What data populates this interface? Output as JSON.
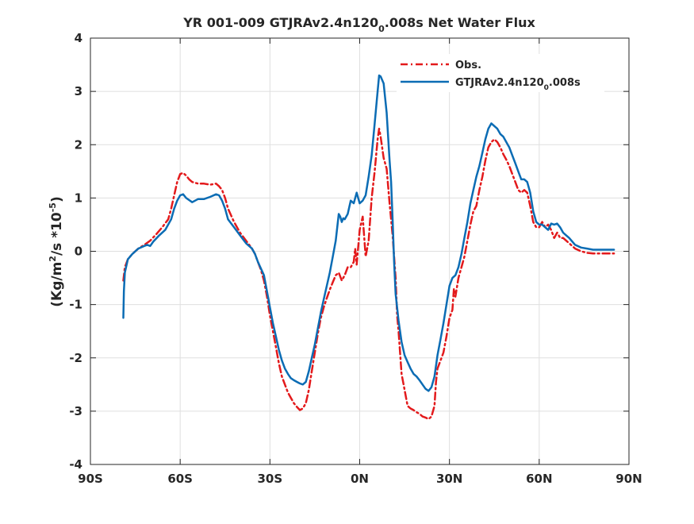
{
  "chart_data": {
    "type": "line",
    "title": {
      "prefix": "YR 001-009 GTJRAv2.4n120",
      "sub": "0",
      "suffix": ".008s  Net Water Flux"
    },
    "ylabel": {
      "a": "(Kg/m",
      "sup1": "2",
      "b": "/s *10",
      "sup2": "-5",
      "c": ")"
    },
    "xlim": [
      -90,
      90
    ],
    "ylim": [
      -4,
      4
    ],
    "grid": true,
    "legend_position": "top-right",
    "x_ticks": [
      {
        "value": -90,
        "label": "90S"
      },
      {
        "value": -60,
        "label": "60S"
      },
      {
        "value": -30,
        "label": "30S"
      },
      {
        "value": 0,
        "label": "0N"
      },
      {
        "value": 30,
        "label": "30N"
      },
      {
        "value": 60,
        "label": "60N"
      },
      {
        "value": 90,
        "label": "90N"
      }
    ],
    "y_ticks": [
      {
        "value": -4,
        "label": "-4"
      },
      {
        "value": -3,
        "label": "-3"
      },
      {
        "value": -2,
        "label": "-2"
      },
      {
        "value": -1,
        "label": "-1"
      },
      {
        "value": 0,
        "label": "0"
      },
      {
        "value": 1,
        "label": "1"
      },
      {
        "value": 2,
        "label": "2"
      },
      {
        "value": 3,
        "label": "3"
      },
      {
        "value": 4,
        "label": "4"
      }
    ],
    "series": [
      {
        "name": "Obs.",
        "color": "#e31a1c",
        "style": "dash-dot",
        "points": [
          [
            -79,
            -0.55
          ],
          [
            -78.5,
            -0.3
          ],
          [
            -77.5,
            -0.15
          ],
          [
            -76,
            -0.05
          ],
          [
            -74,
            0.05
          ],
          [
            -72,
            0.12
          ],
          [
            -70,
            0.2
          ],
          [
            -68,
            0.32
          ],
          [
            -66,
            0.45
          ],
          [
            -64,
            0.6
          ],
          [
            -63,
            0.8
          ],
          [
            -62,
            1.05
          ],
          [
            -61,
            1.3
          ],
          [
            -60,
            1.45
          ],
          [
            -59,
            1.47
          ],
          [
            -58,
            1.42
          ],
          [
            -57,
            1.35
          ],
          [
            -56,
            1.3
          ],
          [
            -54,
            1.27
          ],
          [
            -52,
            1.27
          ],
          [
            -50,
            1.25
          ],
          [
            -48,
            1.27
          ],
          [
            -47,
            1.22
          ],
          [
            -46,
            1.15
          ],
          [
            -45,
            1.0
          ],
          [
            -44,
            0.8
          ],
          [
            -42,
            0.55
          ],
          [
            -40,
            0.35
          ],
          [
            -38,
            0.2
          ],
          [
            -36,
            0.05
          ],
          [
            -35,
            -0.05
          ],
          [
            -34,
            -0.2
          ],
          [
            -33,
            -0.35
          ],
          [
            -32,
            -0.55
          ],
          [
            -31,
            -0.85
          ],
          [
            -30,
            -1.2
          ],
          [
            -29,
            -1.5
          ],
          [
            -28,
            -1.8
          ],
          [
            -27,
            -2.1
          ],
          [
            -26,
            -2.35
          ],
          [
            -25,
            -2.5
          ],
          [
            -24,
            -2.65
          ],
          [
            -23,
            -2.75
          ],
          [
            -22,
            -2.85
          ],
          [
            -21,
            -2.92
          ],
          [
            -20,
            -2.98
          ],
          [
            -19,
            -2.95
          ],
          [
            -18,
            -2.85
          ],
          [
            -17,
            -2.6
          ],
          [
            -16,
            -2.25
          ],
          [
            -15,
            -1.9
          ],
          [
            -14,
            -1.55
          ],
          [
            -13,
            -1.25
          ],
          [
            -12,
            -1.05
          ],
          [
            -11,
            -0.88
          ],
          [
            -10,
            -0.72
          ],
          [
            -9,
            -0.58
          ],
          [
            -8,
            -0.45
          ],
          [
            -7,
            -0.4
          ],
          [
            -6,
            -0.55
          ],
          [
            -5,
            -0.45
          ],
          [
            -4,
            -0.3
          ],
          [
            -3,
            -0.3
          ],
          [
            -2,
            -0.2
          ],
          [
            -1.5,
            0.05
          ],
          [
            -1,
            -0.25
          ],
          [
            0,
            0.4
          ],
          [
            1,
            0.65
          ],
          [
            2,
            -0.1
          ],
          [
            3,
            0.2
          ],
          [
            4,
            1.0
          ],
          [
            5,
            1.5
          ],
          [
            6,
            2.1
          ],
          [
            6.5,
            2.3
          ],
          [
            7,
            2.15
          ],
          [
            8,
            1.75
          ],
          [
            9,
            1.55
          ],
          [
            10,
            0.9
          ],
          [
            11,
            0.3
          ],
          [
            12,
            -0.5
          ],
          [
            12.5,
            -1.2
          ],
          [
            13,
            -1.5
          ],
          [
            13.5,
            -1.9
          ],
          [
            14,
            -2.3
          ],
          [
            15,
            -2.6
          ],
          [
            15.5,
            -2.75
          ],
          [
            16,
            -2.9
          ],
          [
            17,
            -2.95
          ],
          [
            18,
            -2.98
          ],
          [
            19,
            -3.02
          ],
          [
            20,
            -3.05
          ],
          [
            21,
            -3.1
          ],
          [
            22,
            -3.12
          ],
          [
            23,
            -3.15
          ],
          [
            24,
            -3.1
          ],
          [
            25,
            -2.9
          ],
          [
            25.5,
            -2.45
          ],
          [
            26,
            -2.2
          ],
          [
            27,
            -2.05
          ],
          [
            28,
            -1.9
          ],
          [
            29,
            -1.6
          ],
          [
            30,
            -1.25
          ],
          [
            31,
            -1.1
          ],
          [
            31.5,
            -0.7
          ],
          [
            32,
            -0.85
          ],
          [
            33,
            -0.5
          ],
          [
            34,
            -0.3
          ],
          [
            35,
            -0.1
          ],
          [
            36,
            0.2
          ],
          [
            37,
            0.5
          ],
          [
            38,
            0.75
          ],
          [
            39,
            0.85
          ],
          [
            40,
            1.15
          ],
          [
            41,
            1.4
          ],
          [
            42,
            1.7
          ],
          [
            43,
            1.95
          ],
          [
            44,
            2.05
          ],
          [
            45,
            2.1
          ],
          [
            46,
            2.05
          ],
          [
            47,
            1.95
          ],
          [
            48,
            1.82
          ],
          [
            49,
            1.72
          ],
          [
            50,
            1.6
          ],
          [
            51,
            1.45
          ],
          [
            52,
            1.3
          ],
          [
            53,
            1.15
          ],
          [
            54,
            1.1
          ],
          [
            55,
            1.15
          ],
          [
            56,
            1.1
          ],
          [
            57,
            0.85
          ],
          [
            58,
            0.55
          ],
          [
            59,
            0.45
          ],
          [
            60,
            0.45
          ],
          [
            61,
            0.55
          ],
          [
            62,
            0.45
          ],
          [
            63,
            0.5
          ],
          [
            64,
            0.4
          ],
          [
            65,
            0.25
          ],
          [
            66,
            0.35
          ],
          [
            67,
            0.25
          ],
          [
            68,
            0.25
          ],
          [
            70,
            0.15
          ],
          [
            72,
            0.05
          ],
          [
            74,
            0.0
          ],
          [
            76,
            -0.03
          ],
          [
            78,
            -0.04
          ],
          [
            80,
            -0.04
          ],
          [
            82,
            -0.04
          ],
          [
            84,
            -0.04
          ],
          [
            85,
            -0.04
          ]
        ]
      },
      {
        "name": "GTJRAv2.4n120₀.008s",
        "label_main": "GTJRAv2.4n120",
        "label_sub": "0",
        "label_suffix": ".008s",
        "color": "#0b6cb4",
        "style": "solid",
        "points": [
          [
            -79,
            -1.25
          ],
          [
            -78.8,
            -0.75
          ],
          [
            -78.5,
            -0.4
          ],
          [
            -77.5,
            -0.15
          ],
          [
            -76,
            -0.05
          ],
          [
            -74,
            0.05
          ],
          [
            -72,
            0.1
          ],
          [
            -71,
            0.12
          ],
          [
            -70,
            0.1
          ],
          [
            -69,
            0.18
          ],
          [
            -67,
            0.3
          ],
          [
            -65,
            0.4
          ],
          [
            -63,
            0.6
          ],
          [
            -62,
            0.8
          ],
          [
            -61,
            0.95
          ],
          [
            -60,
            1.05
          ],
          [
            -59,
            1.07
          ],
          [
            -58,
            1.0
          ],
          [
            -56,
            0.92
          ],
          [
            -55,
            0.95
          ],
          [
            -54,
            0.98
          ],
          [
            -52,
            0.98
          ],
          [
            -50,
            1.02
          ],
          [
            -48,
            1.07
          ],
          [
            -47,
            1.05
          ],
          [
            -46,
            0.95
          ],
          [
            -45,
            0.8
          ],
          [
            -44,
            0.6
          ],
          [
            -42,
            0.45
          ],
          [
            -40,
            0.3
          ],
          [
            -38,
            0.15
          ],
          [
            -36,
            0.05
          ],
          [
            -35,
            -0.05
          ],
          [
            -34,
            -0.2
          ],
          [
            -32,
            -0.45
          ],
          [
            -31,
            -0.75
          ],
          [
            -30,
            -1.05
          ],
          [
            -29,
            -1.35
          ],
          [
            -28,
            -1.6
          ],
          [
            -27,
            -1.85
          ],
          [
            -26,
            -2.05
          ],
          [
            -25,
            -2.2
          ],
          [
            -24,
            -2.3
          ],
          [
            -23,
            -2.38
          ],
          [
            -22,
            -2.42
          ],
          [
            -21,
            -2.45
          ],
          [
            -20,
            -2.48
          ],
          [
            -19,
            -2.5
          ],
          [
            -18,
            -2.45
          ],
          [
            -17,
            -2.25
          ],
          [
            -16,
            -2.0
          ],
          [
            -15,
            -1.75
          ],
          [
            -14,
            -1.45
          ],
          [
            -13,
            -1.15
          ],
          [
            -12,
            -0.9
          ],
          [
            -11,
            -0.65
          ],
          [
            -10,
            -0.4
          ],
          [
            -9,
            -0.1
          ],
          [
            -8,
            0.2
          ],
          [
            -7.5,
            0.45
          ],
          [
            -7,
            0.7
          ],
          [
            -6.5,
            0.65
          ],
          [
            -6,
            0.55
          ],
          [
            -5.5,
            0.62
          ],
          [
            -5,
            0.6
          ],
          [
            -4,
            0.7
          ],
          [
            -3,
            0.95
          ],
          [
            -2,
            0.9
          ],
          [
            -1,
            1.1
          ],
          [
            0,
            0.9
          ],
          [
            1,
            0.95
          ],
          [
            2,
            1.05
          ],
          [
            3,
            1.4
          ],
          [
            4,
            1.8
          ],
          [
            5,
            2.4
          ],
          [
            6,
            3.0
          ],
          [
            6.5,
            3.3
          ],
          [
            7,
            3.28
          ],
          [
            8,
            3.15
          ],
          [
            9,
            2.6
          ],
          [
            10,
            1.7
          ],
          [
            10.5,
            1.3
          ],
          [
            11,
            0.6
          ],
          [
            11.5,
            -0.2
          ],
          [
            12,
            -0.8
          ],
          [
            13,
            -1.3
          ],
          [
            14,
            -1.7
          ],
          [
            15,
            -1.95
          ],
          [
            16,
            -2.08
          ],
          [
            17,
            -2.2
          ],
          [
            18,
            -2.3
          ],
          [
            19,
            -2.35
          ],
          [
            20,
            -2.42
          ],
          [
            21,
            -2.5
          ],
          [
            22,
            -2.58
          ],
          [
            23,
            -2.62
          ],
          [
            24,
            -2.55
          ],
          [
            25,
            -2.35
          ],
          [
            26,
            -1.95
          ],
          [
            27,
            -1.65
          ],
          [
            28,
            -1.35
          ],
          [
            29,
            -1.0
          ],
          [
            30,
            -0.65
          ],
          [
            31,
            -0.5
          ],
          [
            32,
            -0.45
          ],
          [
            33,
            -0.3
          ],
          [
            34,
            -0.05
          ],
          [
            35,
            0.25
          ],
          [
            36,
            0.55
          ],
          [
            37,
            0.9
          ],
          [
            38,
            1.15
          ],
          [
            39,
            1.4
          ],
          [
            40,
            1.6
          ],
          [
            41,
            1.85
          ],
          [
            42,
            2.1
          ],
          [
            43,
            2.3
          ],
          [
            44,
            2.4
          ],
          [
            45,
            2.35
          ],
          [
            46,
            2.3
          ],
          [
            47,
            2.2
          ],
          [
            48,
            2.15
          ],
          [
            49,
            2.05
          ],
          [
            50,
            1.95
          ],
          [
            51,
            1.8
          ],
          [
            52,
            1.65
          ],
          [
            53,
            1.5
          ],
          [
            54,
            1.35
          ],
          [
            55,
            1.35
          ],
          [
            56,
            1.3
          ],
          [
            57,
            1.1
          ],
          [
            58,
            0.75
          ],
          [
            59,
            0.55
          ],
          [
            60,
            0.5
          ],
          [
            61,
            0.5
          ],
          [
            62,
            0.45
          ],
          [
            63,
            0.4
          ],
          [
            64,
            0.52
          ],
          [
            65,
            0.5
          ],
          [
            66,
            0.52
          ],
          [
            67,
            0.45
          ],
          [
            68,
            0.35
          ],
          [
            69,
            0.3
          ],
          [
            70,
            0.25
          ],
          [
            72,
            0.12
          ],
          [
            74,
            0.07
          ],
          [
            76,
            0.05
          ],
          [
            78,
            0.03
          ],
          [
            80,
            0.03
          ],
          [
            82,
            0.03
          ],
          [
            84,
            0.03
          ],
          [
            85,
            0.03
          ]
        ]
      }
    ]
  }
}
